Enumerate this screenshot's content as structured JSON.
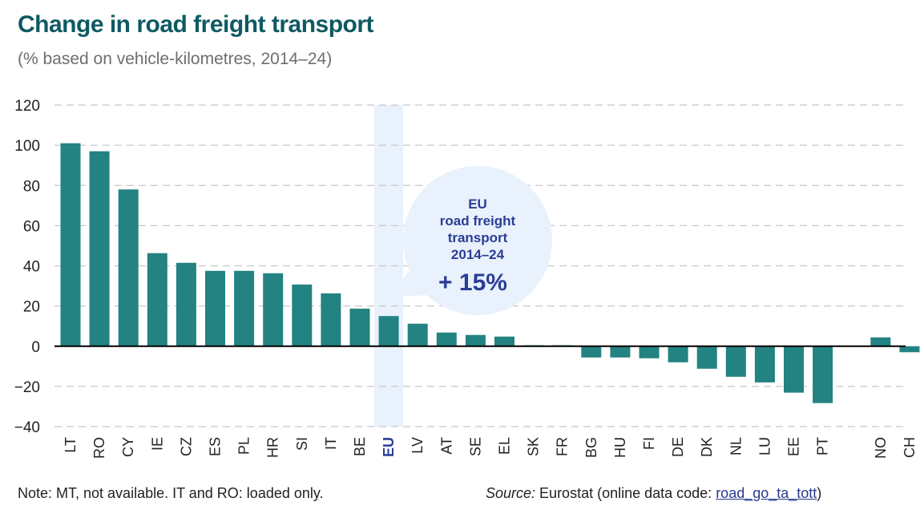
{
  "header": {
    "title": "Change in road freight transport",
    "subtitle": "(% based on vehicle-kilometres, 2014–24)"
  },
  "callout": {
    "line1": "EU",
    "line2": "road freight",
    "line3": "transport",
    "line4": "2014–24",
    "value": "+ 15%"
  },
  "footer": {
    "note": "Note: MT, not available. IT and RO: loaded only.",
    "source_label": "Source:",
    "source_text": " Eurostat (online data code: ",
    "source_link": "road_go_ta_tott",
    "source_end": ")"
  },
  "colors": {
    "bar": "#238282",
    "highlight_band": "#e8f1fc",
    "callout_bg": "#e8f1fc",
    "callout_text": "#2b3d96",
    "title": "#0e5a63",
    "grid": "#c8c8c8"
  },
  "chart_data": {
    "type": "bar",
    "title": "Change in road freight transport",
    "subtitle": "(% based on vehicle-kilometres, 2014–24)",
    "xlabel": "",
    "ylabel": "",
    "ylim": [
      -40,
      120
    ],
    "yticks": [
      -40,
      -20,
      0,
      20,
      40,
      60,
      80,
      100,
      120
    ],
    "ytick_labels": [
      "−40",
      "−20",
      "0",
      "20",
      "40",
      "60",
      "80",
      "100",
      "120"
    ],
    "grid": true,
    "highlight_category": "EU",
    "categories": [
      "LT",
      "RO",
      "CY",
      "IE",
      "CZ",
      "ES",
      "PL",
      "HR",
      "SI",
      "IT",
      "BE",
      "EU",
      "LV",
      "AT",
      "SE",
      "EL",
      "SK",
      "FR",
      "BG",
      "HU",
      "FI",
      "DE",
      "DK",
      "NL",
      "LU",
      "EE",
      "PT",
      "",
      "NO",
      "CH"
    ],
    "values": [
      101,
      97,
      78,
      46.3,
      41.5,
      37.5,
      37.5,
      36.3,
      30.7,
      26.3,
      18.7,
      15,
      11.2,
      6.8,
      5.6,
      4.8,
      0.5,
      0.5,
      -5.6,
      -5.6,
      -6,
      -8,
      -11.2,
      -15.2,
      -18,
      -23.1,
      -28.3,
      null,
      4.4,
      -3
    ]
  }
}
